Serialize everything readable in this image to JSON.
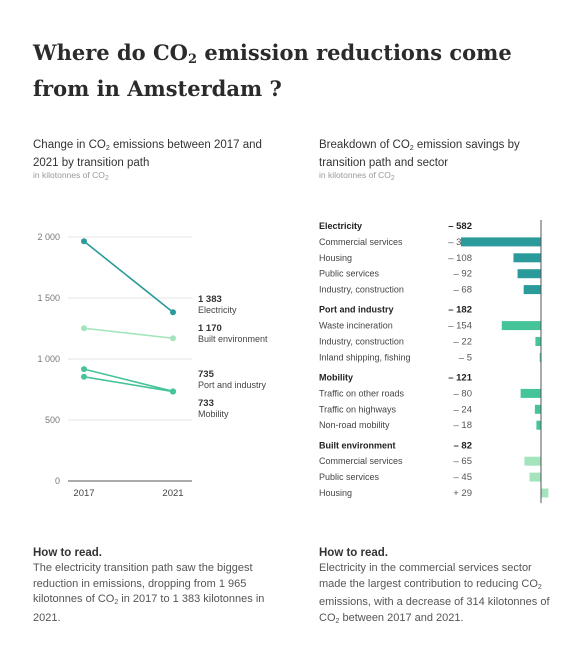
{
  "title_pre": "Where do CO",
  "title_sub": "2",
  "title_post": " emission reductions come from in Amsterdam ?",
  "left_title_pre": "Change in CO",
  "left_title_sub": "2",
  "left_title_post": " emissions between 2017 and 2021 by transition path",
  "right_title_pre": "Breakdown of CO",
  "right_title_sub": "2",
  "right_title_post": " emission savings by transition path and sector",
  "unit_pre": "in kilotonnes of CO",
  "unit_sub": "2",
  "note1_head": "How to read.",
  "note1_pre": "The electricity transition path saw the biggest reduction in emissions, dropping from 1 965 kilotonnes of CO",
  "note1_sub": "2",
  "note1_post": " in 2017 to 1 383 kilotonnes in 2021.",
  "note2_head": "How to read.",
  "note2_pre": "Electricity in the commercial services sector made the largest contribution to reducing CO",
  "note2_sub": "2",
  "note2_mid": " emissions, with a decrease of 314 kilotonnes of CO",
  "note2_sub2": "2",
  "note2_post": " between 2017 and 2021.",
  "colors": {
    "electricity": "#2a9a9a",
    "port": "#45c49a",
    "mobility": "#45c49a",
    "built": "#a3e4bd",
    "axis": "#555555",
    "grid": "#e6e6e6"
  },
  "chart_data": [
    {
      "type": "line",
      "x": [
        "2017",
        "2021"
      ],
      "yticks": [
        "2 000",
        "1 500",
        "1 000",
        "500",
        "0"
      ],
      "ylim": [
        0,
        2000
      ],
      "series": [
        {
          "name": "Electricity",
          "values": [
            1965,
            1383
          ],
          "end_label": "1 383",
          "color_key": "electricity"
        },
        {
          "name": "Built environment",
          "values": [
            1252,
            1170
          ],
          "end_label": "1 170",
          "color_key": "built"
        },
        {
          "name": "Port and industry",
          "values": [
            917,
            735
          ],
          "end_label": "735",
          "color_key": "port"
        },
        {
          "name": "Mobility",
          "values": [
            854,
            733
          ],
          "end_label": "733",
          "color_key": "mobility"
        }
      ]
    },
    {
      "type": "bar",
      "orientation": "horizontal",
      "groups": [
        {
          "name": "Electricity",
          "total_label": "– 582",
          "color_key": "electricity",
          "items": [
            {
              "label": "Commercial services",
              "value_label": "– 314",
              "value": -314
            },
            {
              "label": "Housing",
              "value_label": "– 108",
              "value": -108
            },
            {
              "label": "Public services",
              "value_label": "– 92",
              "value": -92
            },
            {
              "label": "Industry, construction",
              "value_label": "– 68",
              "value": -68
            }
          ]
        },
        {
          "name": "Port and industry",
          "total_label": "– 182",
          "color_key": "port",
          "items": [
            {
              "label": "Waste incineration",
              "value_label": "– 154",
              "value": -154
            },
            {
              "label": "Industry, construction",
              "value_label": "– 22",
              "value": -22
            },
            {
              "label": "Inland shipping, fishing",
              "value_label": "– 5",
              "value": -5
            }
          ]
        },
        {
          "name": "Mobility",
          "total_label": "– 121",
          "color_key": "port",
          "items": [
            {
              "label": "Traffic on other roads",
              "value_label": "– 80",
              "value": -80
            },
            {
              "label": "Traffic on highways",
              "value_label": "– 24",
              "value": -24
            },
            {
              "label": "Non-road mobility",
              "value_label": "– 18",
              "value": -18
            }
          ]
        },
        {
          "name": "Built environment",
          "total_label": "– 82",
          "color_key": "built",
          "items": [
            {
              "label": "Commercial services",
              "value_label": "– 65",
              "value": -65
            },
            {
              "label": "Public services",
              "value_label": "– 45",
              "value": -45
            },
            {
              "label": "Housing",
              "value_label": "+ 29",
              "value": 29
            }
          ]
        }
      ]
    }
  ]
}
